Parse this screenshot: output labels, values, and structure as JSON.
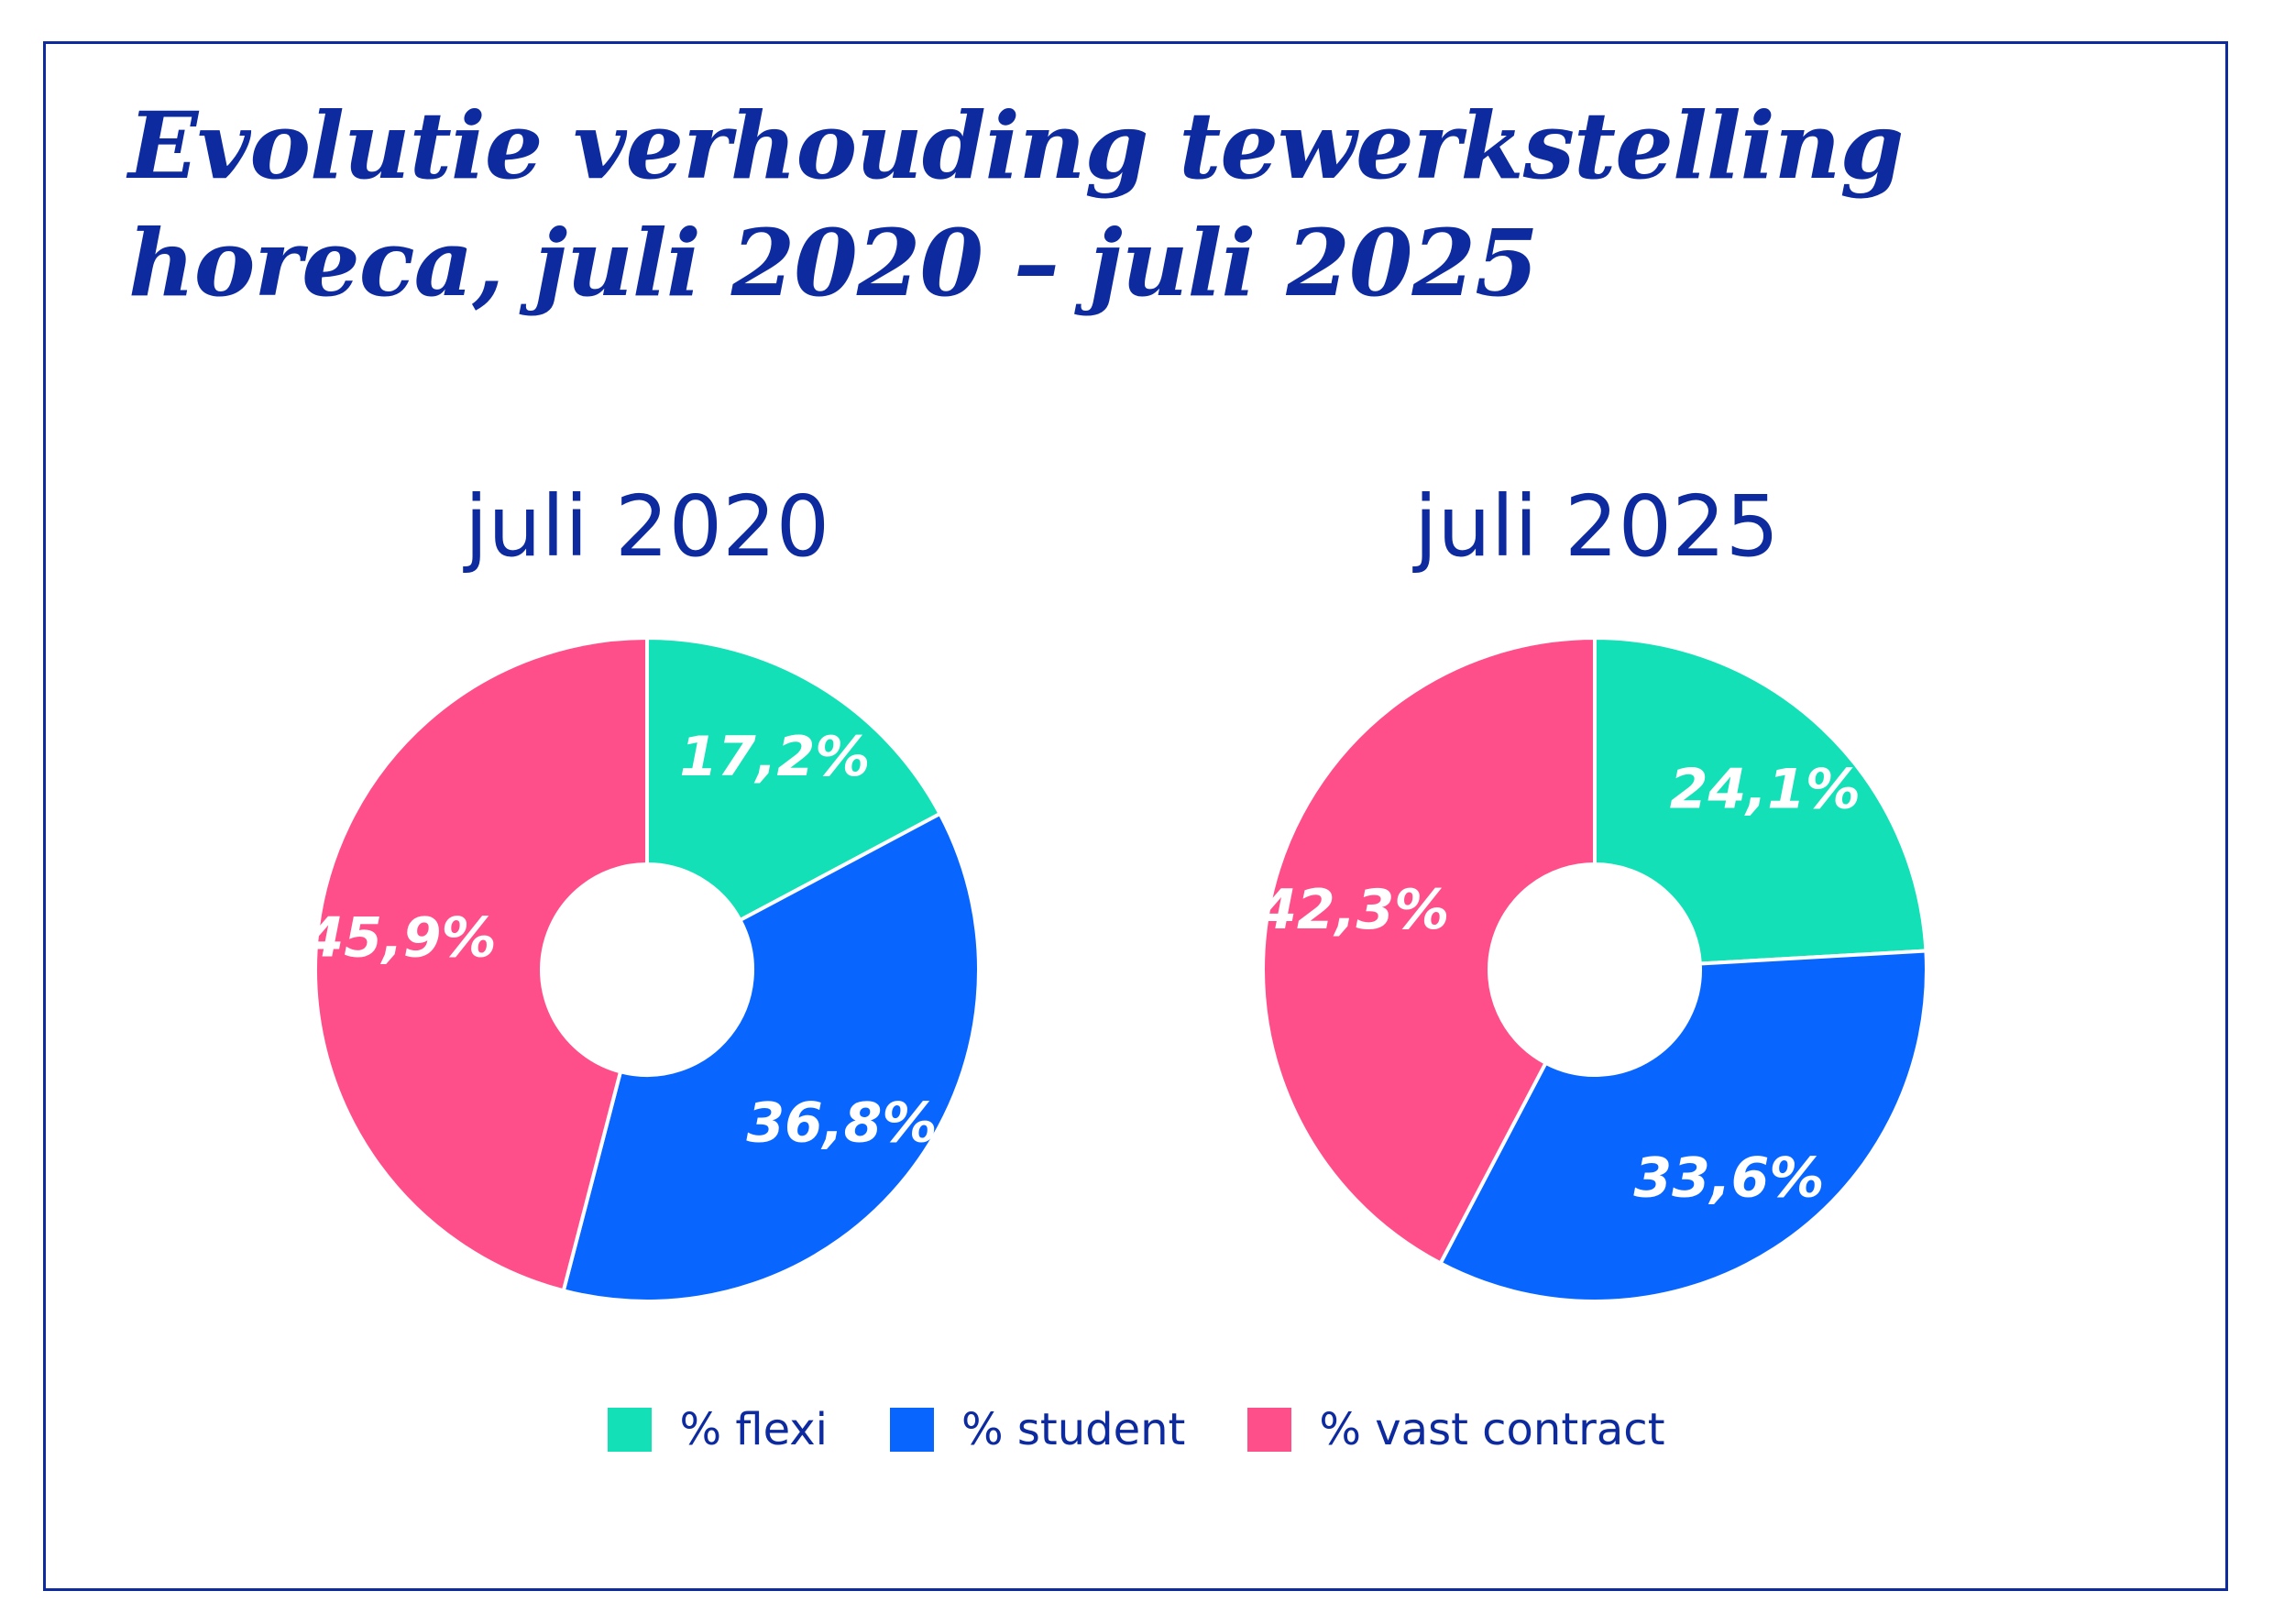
{
  "title_line1": "Evolutie verhouding tewerkstelling",
  "title_line2": "horeca, juli 2020 – juli 2025",
  "colors": {
    "flexi": "#14e0b8",
    "student": "#0866ff",
    "vast_contract": "#ff4f8b",
    "text": "#0d2a9e"
  },
  "legend": [
    {
      "label": "% flexi",
      "color": "#14e0b8"
    },
    {
      "label": "% student",
      "color": "#0866ff"
    },
    {
      "label": "% vast contract",
      "color": "#ff4f8b"
    }
  ],
  "chart_data": [
    {
      "type": "pie",
      "title": "juli 2020",
      "categories": [
        "% flexi",
        "% student",
        "% vast contract"
      ],
      "values": [
        17.2,
        36.8,
        45.9
      ],
      "labels": [
        "17,2%",
        "36,8%",
        "45,9%"
      ]
    },
    {
      "type": "pie",
      "title": "juli 2025",
      "categories": [
        "% flexi",
        "% student",
        "% vast contract"
      ],
      "values": [
        24.1,
        33.6,
        42.3
      ],
      "labels": [
        "24,1%",
        "33,6%",
        "42,3%"
      ]
    }
  ]
}
